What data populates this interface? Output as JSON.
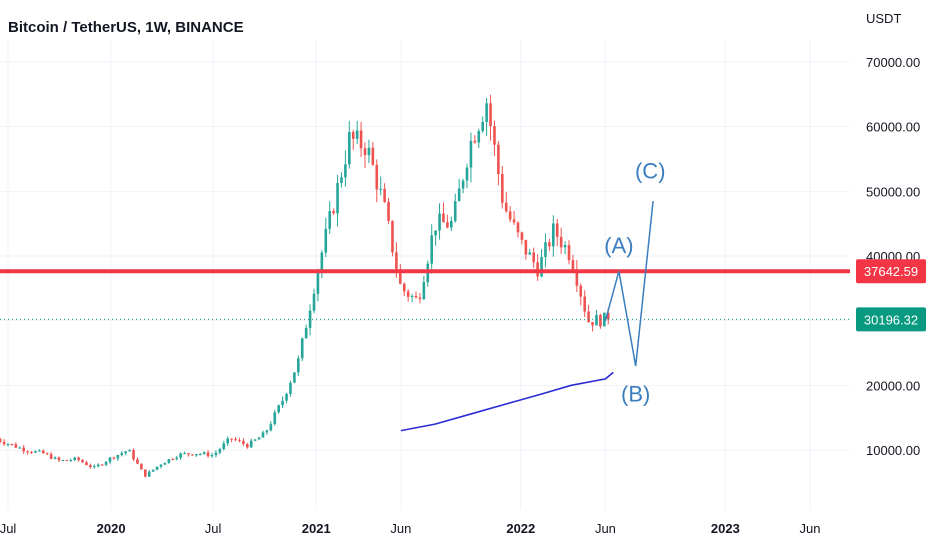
{
  "header": {
    "title": "Bitcoin / TetherUS, 1W, BINANCE",
    "currency": "USDT"
  },
  "colors": {
    "up": "#26a69a",
    "down": "#ef5350",
    "resistance": "#f23645",
    "current_price": "#089981",
    "moving_average": "#2b2bd6",
    "wave": "#3a7ebf"
  },
  "chart_data": {
    "type": "candlestick",
    "interval": "1W",
    "ylim": [
      0,
      75000
    ],
    "yticks": [
      "10000.00",
      "20000.00",
      "30000.00",
      "40000.00",
      "50000.00",
      "60000.00",
      "70000.00"
    ],
    "xticks": [
      {
        "label": "Jul",
        "date": "2019-07-01",
        "bold": false
      },
      {
        "label": "2020",
        "date": "2020-01-01",
        "bold": true
      },
      {
        "label": "Jul",
        "date": "2020-07-01",
        "bold": false
      },
      {
        "label": "2021",
        "date": "2021-01-01",
        "bold": true
      },
      {
        "label": "Jun",
        "date": "2021-06-01",
        "bold": false
      },
      {
        "label": "2022",
        "date": "2022-01-01",
        "bold": true
      },
      {
        "label": "Jun",
        "date": "2022-06-01",
        "bold": false
      },
      {
        "label": "2023",
        "date": "2023-01-01",
        "bold": true
      },
      {
        "label": "Jun",
        "date": "2023-06-01",
        "bold": false
      }
    ],
    "closes": [
      {
        "date": "2019-06-01",
        "close": 12000
      },
      {
        "date": "2019-07-01",
        "close": 11000
      },
      {
        "date": "2019-08-01",
        "close": 10000
      },
      {
        "date": "2019-09-01",
        "close": 9500
      },
      {
        "date": "2019-10-01",
        "close": 8300
      },
      {
        "date": "2019-11-01",
        "close": 8600
      },
      {
        "date": "2019-12-01",
        "close": 7200
      },
      {
        "date": "2020-01-01",
        "close": 8800
      },
      {
        "date": "2020-02-01",
        "close": 10000
      },
      {
        "date": "2020-03-01",
        "close": 6000
      },
      {
        "date": "2020-04-01",
        "close": 8000
      },
      {
        "date": "2020-05-01",
        "close": 9300
      },
      {
        "date": "2020-06-01",
        "close": 9500
      },
      {
        "date": "2020-07-01",
        "close": 9200
      },
      {
        "date": "2020-08-01",
        "close": 11800
      },
      {
        "date": "2020-09-01",
        "close": 10700
      },
      {
        "date": "2020-10-01",
        "close": 12500
      },
      {
        "date": "2020-11-01",
        "close": 17500
      },
      {
        "date": "2020-12-01",
        "close": 24000
      },
      {
        "date": "2021-01-01",
        "close": 37000
      },
      {
        "date": "2021-02-01",
        "close": 48000
      },
      {
        "date": "2021-03-01",
        "close": 58000
      },
      {
        "date": "2021-04-01",
        "close": 57000
      },
      {
        "date": "2021-05-01",
        "close": 48000
      },
      {
        "date": "2021-06-01",
        "close": 35000
      },
      {
        "date": "2021-07-01",
        "close": 33000
      },
      {
        "date": "2021-08-01",
        "close": 45000
      },
      {
        "date": "2021-09-01",
        "close": 45000
      },
      {
        "date": "2021-10-01",
        "close": 57000
      },
      {
        "date": "2021-11-01",
        "close": 64000
      },
      {
        "date": "2021-12-01",
        "close": 48000
      },
      {
        "date": "2022-01-01",
        "close": 42000
      },
      {
        "date": "2022-02-01",
        "close": 38000
      },
      {
        "date": "2022-03-01",
        "close": 44000
      },
      {
        "date": "2022-04-01",
        "close": 40000
      },
      {
        "date": "2022-05-01",
        "close": 30000
      },
      {
        "date": "2022-06-01",
        "close": 30196
      }
    ],
    "resistance_level": {
      "price": 37642.59,
      "label": "37642.59"
    },
    "current_price": {
      "price": 30196.32,
      "label": "30196.32"
    },
    "moving_average": [
      {
        "date": "2021-06-01",
        "value": 13000
      },
      {
        "date": "2021-08-01",
        "value": 14000
      },
      {
        "date": "2021-10-01",
        "value": 15500
      },
      {
        "date": "2021-12-01",
        "value": 17000
      },
      {
        "date": "2022-02-01",
        "value": 18500
      },
      {
        "date": "2022-04-01",
        "value": 20000
      },
      {
        "date": "2022-06-01",
        "value": 21000
      },
      {
        "date": "2022-06-15",
        "value": 22000
      }
    ],
    "projection": {
      "points": [
        {
          "date": "2022-06-01",
          "value": 30000
        },
        {
          "date": "2022-06-25",
          "value": 37642
        },
        {
          "date": "2022-07-25",
          "value": 23000
        },
        {
          "date": "2022-08-25",
          "value": 48500
        }
      ],
      "labels": [
        {
          "text": "(A)",
          "date": "2022-06-25",
          "value": 40500
        },
        {
          "text": "(B)",
          "date": "2022-07-25",
          "value": 17500
        },
        {
          "text": "(C)",
          "date": "2022-08-20",
          "value": 52000
        }
      ]
    }
  }
}
